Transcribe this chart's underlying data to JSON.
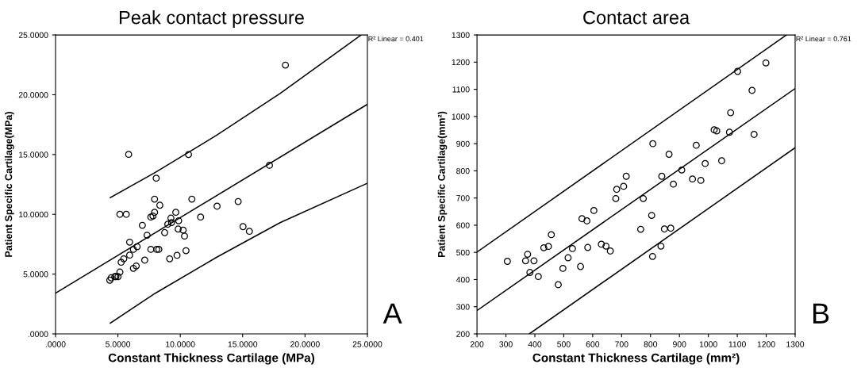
{
  "chart_data": [
    {
      "type": "scatter",
      "title": "Peak contact pressure",
      "xlabel": "Constant Thickness Cartilage (MPa)",
      "ylabel": "Patient Specific Cartilage(MPa)",
      "xlim": [
        0,
        25
      ],
      "ylim": [
        0,
        25
      ],
      "xticks": [
        {
          "value": 0,
          "label": ".0000"
        },
        {
          "value": 5,
          "label": "5.0000"
        },
        {
          "value": 10,
          "label": "10.0000"
        },
        {
          "value": 15,
          "label": "15.0000"
        },
        {
          "value": 20,
          "label": "20.0000"
        },
        {
          "value": 25,
          "label": "25.0000"
        }
      ],
      "yticks": [
        {
          "value": 0,
          "label": ".0000"
        },
        {
          "value": 5,
          "label": "5.0000"
        },
        {
          "value": 10,
          "label": "10.0000"
        },
        {
          "value": 15,
          "label": "15.0000"
        },
        {
          "value": 20,
          "label": "20.0000"
        },
        {
          "value": 25,
          "label": "25.0000"
        }
      ],
      "grid": false,
      "legend": false,
      "annotations": [
        "R² Linear = 0.401",
        "A"
      ],
      "series": [
        {
          "marker": "circle",
          "color": "#000000",
          "x": [
            18.43,
            5.86,
            10.66,
            17.15,
            8.07,
            7.94,
            10.93,
            8.36,
            14.64,
            12.95,
            5.16,
            5.67,
            7.94,
            7.81,
            7.64,
            9.64,
            9.25,
            11.63,
            9.87,
            9.3,
            9.0,
            6.96,
            15.03,
            15.54,
            9.83,
            10.23,
            8.75,
            10.34,
            7.34,
            5.94,
            6.54,
            6.24,
            7.64,
            8.11,
            8.28,
            10.46,
            5.94,
            9.74,
            5.47,
            9.15,
            5.26,
            7.15,
            6.47,
            6.24,
            5.16,
            4.46,
            4.35,
            4.84,
            5.01,
            4.75
          ],
          "values": [
            22.48,
            15.01,
            15.0,
            14.1,
            13.02,
            11.27,
            11.27,
            10.76,
            11.07,
            10.68,
            10.0,
            10.0,
            10.17,
            9.86,
            9.77,
            10.17,
            9.68,
            9.77,
            9.46,
            9.31,
            9.17,
            9.08,
            8.97,
            8.58,
            8.77,
            8.68,
            8.47,
            8.18,
            8.25,
            7.67,
            7.29,
            7.07,
            7.07,
            7.07,
            7.07,
            6.96,
            6.59,
            6.57,
            6.28,
            6.28,
            5.99,
            6.17,
            5.68,
            5.48,
            5.17,
            4.69,
            4.49,
            4.79,
            4.79,
            4.79
          ]
        },
        {
          "type": "line",
          "marker": "none",
          "color": "#000000",
          "x": [
            0,
            25
          ],
          "values": [
            3.4,
            19.2
          ]
        },
        {
          "type": "line",
          "marker": "none",
          "color": "#000000",
          "x": [
            4.39,
            8,
            12.9,
            18,
            24.5
          ],
          "values": [
            11.4,
            13.5,
            16.6,
            20.1,
            25
          ]
        },
        {
          "type": "line",
          "marker": "none",
          "color": "#000000",
          "x": [
            4.39,
            8,
            12.9,
            18,
            25
          ],
          "values": [
            0.9,
            3.4,
            6.4,
            9.3,
            12.6
          ]
        }
      ]
    },
    {
      "type": "scatter",
      "title": "Contact area",
      "xlabel": "Constant Thickness Cartilage (mm²)",
      "ylabel": "Patient Specific Cartilage(mm²)",
      "xlim": [
        200,
        1300
      ],
      "ylim": [
        200,
        1300
      ],
      "xticks": [
        200,
        300,
        400,
        500,
        600,
        700,
        800,
        900,
        1000,
        1100,
        1200,
        1300
      ],
      "yticks": [
        200,
        300,
        400,
        500,
        600,
        700,
        800,
        900,
        1000,
        1100,
        1200,
        1300
      ],
      "grid": false,
      "legend": false,
      "annotations": [
        "R² Linear = 0.761",
        "B"
      ],
      "series": [
        {
          "marker": "circle",
          "color": "#000000",
          "x": [
            1199,
            1101,
            1151,
            1077,
            1020,
            1029,
            1073,
            1158,
            958,
            808,
            864,
            1046,
            989,
            908,
            839,
            716,
            945,
            974,
            879,
            707,
            683,
            680,
            775,
            604,
            804,
            580,
            563,
            766,
            848,
            870,
            457,
            431,
            447,
            530,
            583,
            630,
            646,
            661,
            836,
            807,
            375,
            305,
            368,
            397,
            515,
            383,
            497,
            558,
            412,
            481
          ],
          "values": [
            1197,
            1166,
            1096,
            1014,
            951,
            947,
            942,
            934,
            894,
            900,
            861,
            837,
            827,
            803,
            780,
            780,
            770,
            765,
            751,
            743,
            732,
            698,
            698,
            654,
            636,
            616,
            624,
            585,
            586,
            589,
            565,
            517,
            522,
            514,
            518,
            530,
            523,
            505,
            523,
            485,
            493,
            467,
            469,
            469,
            480,
            426,
            441,
            448,
            411,
            381
          ]
        },
        {
          "type": "line",
          "marker": "none",
          "color": "#000000",
          "x": [
            200,
            1300
          ],
          "values": [
            286,
            1103
          ]
        },
        {
          "type": "line",
          "marker": "none",
          "color": "#000000",
          "x": [
            200,
            1270
          ],
          "values": [
            501,
            1300
          ]
        },
        {
          "type": "line",
          "marker": "none",
          "color": "#000000",
          "x": [
            381,
            1300
          ],
          "values": [
            200,
            885
          ]
        }
      ]
    }
  ]
}
